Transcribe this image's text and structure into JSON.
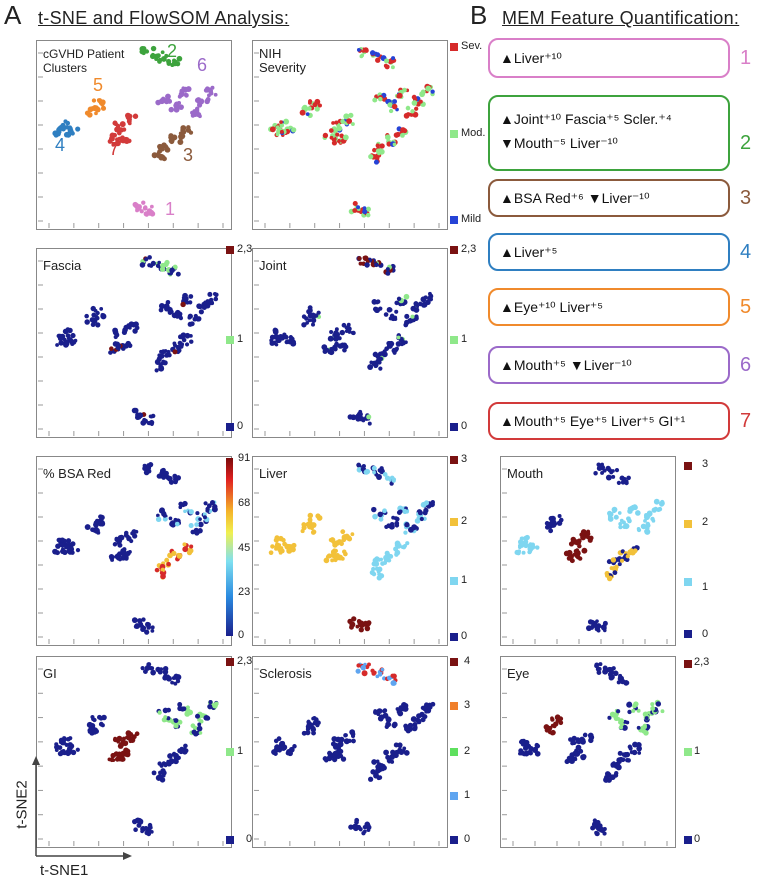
{
  "panel_a": {
    "letter": "A",
    "title": "t-SNE and FlowSOM Analysis:"
  },
  "panel_b": {
    "letter": "B",
    "title": "MEM Feature Quantification:"
  },
  "axes": {
    "x": "t-SNE1",
    "y": "t-SNE2"
  },
  "plots": {
    "clusters": {
      "label_line1": "cGVHD Patient",
      "label_line2": "Clusters"
    },
    "severity": {
      "label_line1": "NIH",
      "label_line2": "Severity",
      "legend": [
        "Sev.",
        "Mod.",
        "Mild"
      ]
    },
    "fascia": {
      "label": "Fascia",
      "legend": [
        "2,3",
        "1",
        "0"
      ]
    },
    "joint": {
      "label": "Joint",
      "legend": [
        "2,3",
        "1",
        "0"
      ]
    },
    "bsa": {
      "label": "% BSA Red",
      "ticks": [
        "91",
        "68",
        "45",
        "23",
        "0"
      ]
    },
    "liver": {
      "label": "Liver",
      "legend": [
        "3",
        "2",
        "1",
        "0"
      ]
    },
    "mouth": {
      "label": "Mouth",
      "legend": [
        "3",
        "2",
        "1",
        "0"
      ]
    },
    "gi": {
      "label": "GI",
      "legend": [
        "2,3",
        "1",
        "0"
      ]
    },
    "sclerosis": {
      "label": "Sclerosis",
      "legend": [
        "4",
        "3",
        "2",
        "1",
        "0"
      ]
    },
    "eye": {
      "label": "Eye",
      "legend": [
        "2,3",
        "1",
        "0"
      ]
    }
  },
  "clusters": [
    {
      "id": "1",
      "color": "#d97fc8"
    },
    {
      "id": "2",
      "color": "#3da33d"
    },
    {
      "id": "3",
      "color": "#8b5a3c"
    },
    {
      "id": "4",
      "color": "#2f7fc1"
    },
    {
      "id": "5",
      "color": "#f08a2c"
    },
    {
      "id": "6",
      "color": "#9b6ac9"
    },
    {
      "id": "7",
      "color": "#d23a3a"
    }
  ],
  "mem": [
    {
      "id": "1",
      "line1": "▲Liver⁺¹⁰",
      "line2": "",
      "color": "#d97fc8"
    },
    {
      "id": "2",
      "line1": "▲Joint⁺¹⁰ Fascia⁺⁵ Scler.⁺⁴",
      "line2": "▼Mouth⁻⁵ Liver⁻¹⁰",
      "color": "#3da33d"
    },
    {
      "id": "3",
      "line1": "▲BSA Red⁺⁶  ▼Liver⁻¹⁰",
      "line2": "",
      "color": "#8b5a3c"
    },
    {
      "id": "4",
      "line1": "▲Liver⁺⁵",
      "line2": "",
      "color": "#2f7fc1"
    },
    {
      "id": "5",
      "line1": "▲Eye⁺¹⁰ Liver⁺⁵",
      "line2": "",
      "color": "#f08a2c"
    },
    {
      "id": "6",
      "line1": "▲Mouth⁺⁵   ▼Liver⁻¹⁰",
      "line2": "",
      "color": "#9b6ac9"
    },
    {
      "id": "7",
      "line1": "▲Mouth⁺⁵  Eye⁺⁵ Liver⁺⁵ GI⁺¹",
      "line2": "",
      "color": "#d23a3a"
    }
  ],
  "colors": {
    "navy": "#1a1f8c",
    "lightgreen": "#8fe88a",
    "darkred": "#7a1212",
    "red": "#d62a2a",
    "blue": "#2643d6",
    "gold": "#f2c13a",
    "cyan": "#7fd6f0",
    "orange": "#f07f2a",
    "green": "#5ee05e",
    "lightblue": "#5fa5f0"
  }
}
